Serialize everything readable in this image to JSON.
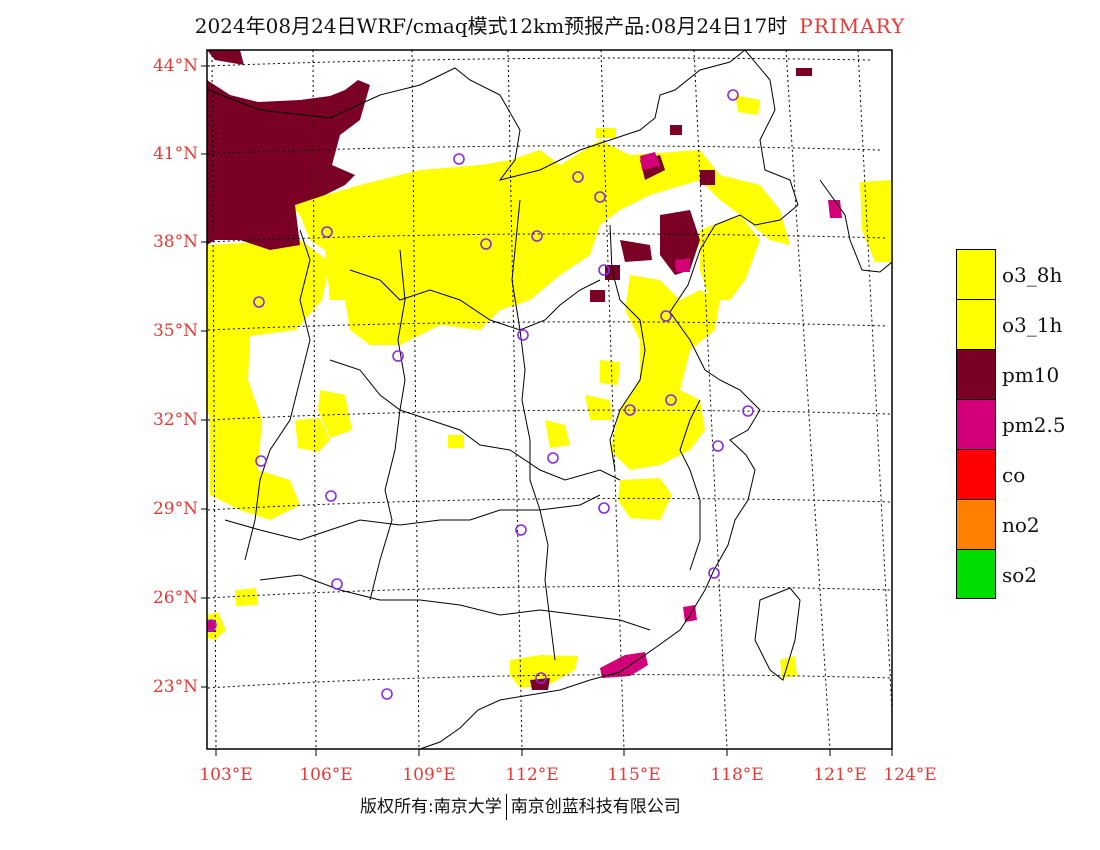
{
  "header": {
    "title": "2024年08月24日WRF/cmaq模式12km预报产品:08月24日17时",
    "primary_label": "PRIMARY"
  },
  "axes": {
    "lat_labels": [
      "44°N",
      "41°N",
      "38°N",
      "35°N",
      "32°N",
      "29°N",
      "26°N",
      "23°N"
    ],
    "lon_labels": [
      "103°E",
      "106°E",
      "109°E",
      "112°E",
      "115°E",
      "118°E",
      "121°E",
      "124°E"
    ]
  },
  "legend": {
    "items": [
      {
        "label": "o3_8h",
        "color": "#ffff00"
      },
      {
        "label": "o3_1h",
        "color": "#ffff00"
      },
      {
        "label": "pm10",
        "color": "#7a0026"
      },
      {
        "label": "pm2.5",
        "color": "#d4007a"
      },
      {
        "label": "co",
        "color": "#ff0000"
      },
      {
        "label": "no2",
        "color": "#ff8000"
      },
      {
        "label": "so2",
        "color": "#00dd00"
      }
    ]
  },
  "footer": {
    "left": "版权所有:南京大学",
    "right": "南京创蓝科技有限公司"
  },
  "colors": {
    "o3": "#ffff00",
    "pm10": "#7a0026",
    "pm25": "#d4007a",
    "station_marker": "#8a2be2",
    "axis_label": "#e53935"
  }
}
